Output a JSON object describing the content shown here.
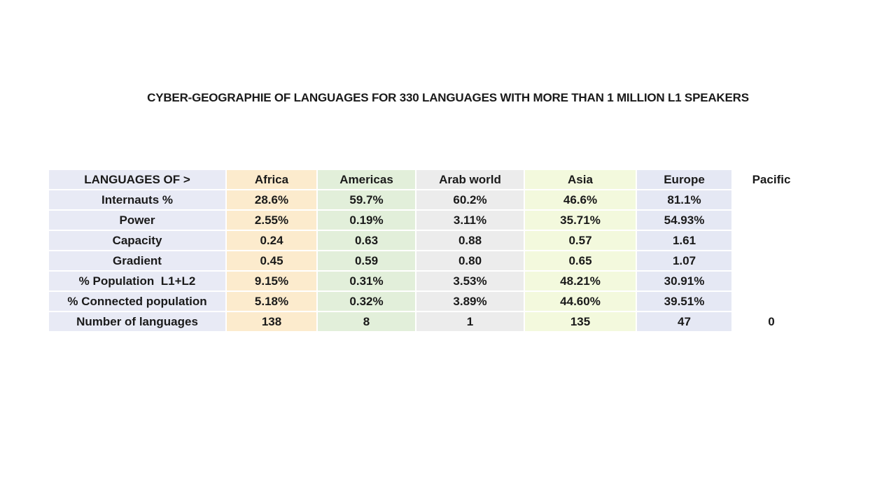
{
  "title": "CYBER-GEOGRAPHIE OF LANGUAGES FOR 330 LANGUAGES WITH MORE THAN 1 MILLION L1 SPEAKERS",
  "chart_data": {
    "type": "table",
    "title": "CYBER-GEOGRAPHIE OF LANGUAGES FOR 330 LANGUAGES WITH MORE THAN 1 MILLION L1 SPEAKERS",
    "corner_label": "LANGUAGES OF >",
    "columns": [
      "Africa",
      "Americas",
      "Arab world",
      "Asia",
      "Europe",
      "Pacific"
    ],
    "row_labels": [
      "Internauts %",
      "Power",
      "Capacity",
      "Gradient",
      "% Population  L1+L2",
      "% Connected population",
      "Number of languages"
    ],
    "rows": [
      [
        "28.6%",
        "59.7%",
        "60.2%",
        "46.6%",
        "81.1%",
        ""
      ],
      [
        "2.55%",
        "0.19%",
        "3.11%",
        "35.71%",
        "54.93%",
        ""
      ],
      [
        "0.24",
        "0.63",
        "0.88",
        "0.57",
        "1.61",
        ""
      ],
      [
        "0.45",
        "0.59",
        "0.80",
        "0.65",
        "1.07",
        ""
      ],
      [
        "9.15%",
        "0.31%",
        "3.53%",
        "48.21%",
        "30.91%",
        ""
      ],
      [
        "5.18%",
        "0.32%",
        "3.89%",
        "44.60%",
        "39.51%",
        ""
      ],
      [
        "138",
        "8",
        "1",
        "135",
        "47",
        "0"
      ]
    ],
    "column_fill_colors": {
      "label_column": "#E8EAF5",
      "Africa": "#FCEBCD",
      "Americas": "#E2EFDA",
      "Arab world": "#ECECEC",
      "Asia": "#F3F9DD",
      "Europe": "#E5E8F4",
      "Pacific": "#FFFFFF"
    },
    "gridline_color": "#FFFFFF",
    "text_color": "#1A1A1A",
    "layout": {
      "grid": "white 2px separators",
      "legend": "none",
      "all_text_bold": true
    }
  }
}
